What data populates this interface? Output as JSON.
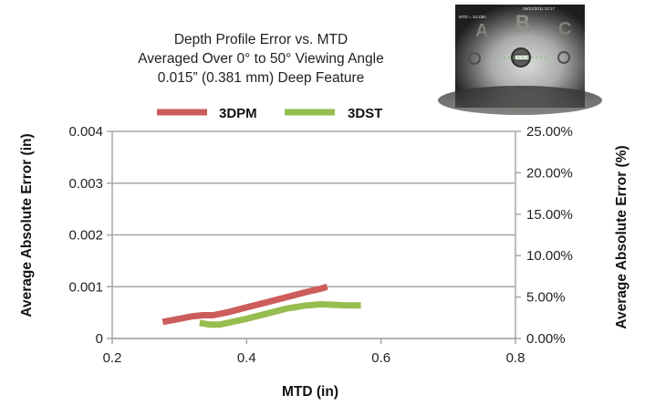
{
  "chart_data": {
    "type": "line",
    "title": [
      "Depth Profile Error vs. MTD",
      "Averaged Over 0° to 50° Viewing Angle",
      "0.015” (0.381 mm) Deep Feature"
    ],
    "xlabel": "MTD (in)",
    "ylabel": "Average Absolute Error (in)",
    "ylabel_right": "Average Absolute Error (%)",
    "xlim": [
      0.2,
      0.8
    ],
    "ylim": [
      0,
      0.004
    ],
    "ylim_right": [
      0,
      0.25
    ],
    "x_ticks": [
      "0.2",
      "0.4",
      "0.6",
      "0.8"
    ],
    "y_ticks": [
      "0",
      "0.001",
      "0.002",
      "0.003",
      "0.004"
    ],
    "y_ticks_right": [
      "0.00%",
      "5.00%",
      "10.00%",
      "15.00%",
      "20.00%",
      "25.00%"
    ],
    "grid": true,
    "legend_position": "top-center",
    "series": [
      {
        "name": "3DPM",
        "color": "#cd5c5c",
        "x": [
          0.275,
          0.3,
          0.32,
          0.335,
          0.35,
          0.37,
          0.4,
          0.43,
          0.46,
          0.49,
          0.51,
          0.52
        ],
        "y": [
          0.00032,
          0.00038,
          0.00043,
          0.00045,
          0.00045,
          0.0005,
          0.0006,
          0.0007,
          0.0008,
          0.0009,
          0.00096,
          0.001
        ]
      },
      {
        "name": "3DST",
        "color": "#96bd50",
        "x": [
          0.33,
          0.345,
          0.36,
          0.375,
          0.4,
          0.43,
          0.46,
          0.49,
          0.51,
          0.53,
          0.55,
          0.57
        ],
        "y": [
          0.0003,
          0.00027,
          0.00027,
          0.00031,
          0.00038,
          0.00048,
          0.00058,
          0.00064,
          0.00066,
          0.00065,
          0.00064,
          0.00064
        ]
      }
    ]
  },
  "inset": {
    "letters": [
      "A",
      "B",
      "C"
    ],
    "header_texts": [
      "06/21/2011  12:17",
      "MTD = 10.23in"
    ]
  }
}
